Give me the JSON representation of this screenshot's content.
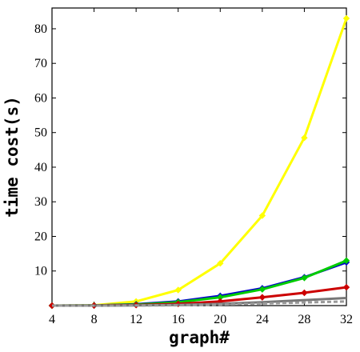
{
  "chart_data": {
    "type": "line",
    "xlabel": "graph#",
    "ylabel": "time cost(s)",
    "xlim": [
      4,
      32
    ],
    "ylim": [
      0,
      86
    ],
    "grid": false,
    "xticks": [
      4,
      8,
      12,
      16,
      20,
      24,
      28,
      32
    ],
    "yticks": [
      10,
      20,
      30,
      40,
      50,
      60,
      70,
      80
    ],
    "x": [
      4,
      8,
      12,
      16,
      20,
      24,
      28,
      32
    ],
    "series": [
      {
        "color": "#ffff00",
        "dash": "",
        "marker": true,
        "values": [
          0.0,
          0.1,
          1.2,
          4.5,
          12.2,
          26.0,
          48.5,
          83.0
        ]
      },
      {
        "color": "#0000cc",
        "dash": "",
        "marker": true,
        "values": [
          0.0,
          0.05,
          0.4,
          1.2,
          2.8,
          5.0,
          8.2,
          12.5
        ]
      },
      {
        "color": "#00cc00",
        "dash": "",
        "marker": true,
        "values": [
          0.0,
          0.05,
          0.3,
          1.0,
          2.4,
          4.7,
          8.0,
          13.0
        ]
      },
      {
        "color": "#cc0000",
        "dash": "",
        "marker": true,
        "values": [
          0.0,
          0.02,
          0.15,
          0.5,
          1.2,
          2.4,
          3.7,
          5.3
        ]
      },
      {
        "color": "#777777",
        "dash": "",
        "marker": false,
        "values": [
          0.0,
          0.01,
          0.05,
          0.2,
          0.5,
          1.0,
          1.6,
          2.2
        ]
      },
      {
        "color": "#999999",
        "dash": "5,3",
        "marker": false,
        "values": [
          0.0,
          0.01,
          0.03,
          0.1,
          0.3,
          0.6,
          0.9,
          1.2
        ]
      }
    ]
  }
}
